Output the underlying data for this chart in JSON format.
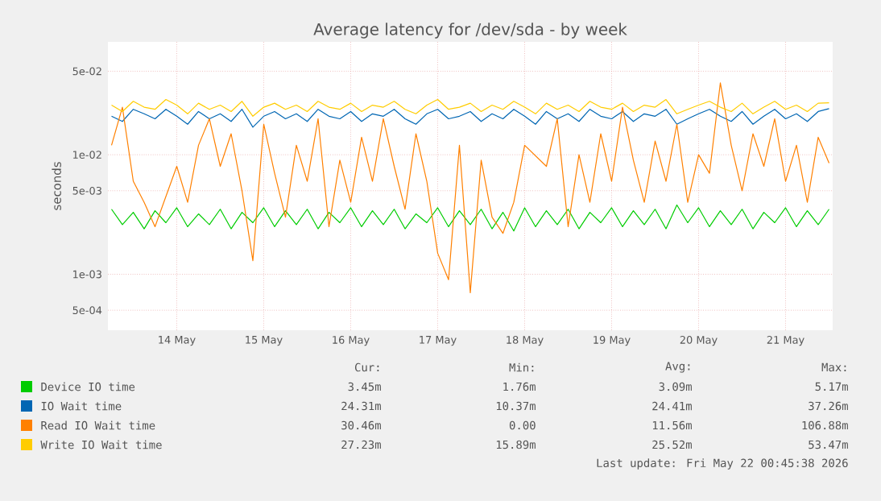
{
  "chart_data": {
    "type": "line",
    "title": "Average latency for /dev/sda - by week",
    "ylabel": "seconds",
    "log": "y",
    "grid": true,
    "legend": "bottom",
    "ylim": [
      0.00034,
      0.088
    ],
    "yticks": [
      {
        "value": 0.0005,
        "label": "5e-04"
      },
      {
        "value": 0.001,
        "label": "1e-03"
      },
      {
        "value": 0.005,
        "label": "5e-03"
      },
      {
        "value": 0.01,
        "label": "1e-02"
      },
      {
        "value": 0.05,
        "label": "5e-02"
      }
    ],
    "xlim": [
      "2026-05-13T17:00",
      "2026-05-22T01:00"
    ],
    "xticks": [
      {
        "value": "2026-05-14T12:00",
        "label": "14 May"
      },
      {
        "value": "2026-05-15T12:00",
        "label": "15 May"
      },
      {
        "value": "2026-05-16T12:00",
        "label": "16 May"
      },
      {
        "value": "2026-05-17T12:00",
        "label": "17 May"
      },
      {
        "value": "2026-05-18T12:00",
        "label": "18 May"
      },
      {
        "value": "2026-05-19T12:00",
        "label": "19 May"
      },
      {
        "value": "2026-05-20T12:00",
        "label": "20 May"
      },
      {
        "value": "2026-05-21T12:00",
        "label": "21 May"
      }
    ],
    "x": [
      "2026-05-13T18:00",
      "2026-05-13T21:00",
      "2026-05-14T00:00",
      "2026-05-14T03:00",
      "2026-05-14T06:00",
      "2026-05-14T09:00",
      "2026-05-14T12:00",
      "2026-05-14T15:00",
      "2026-05-14T18:00",
      "2026-05-14T21:00",
      "2026-05-15T00:00",
      "2026-05-15T03:00",
      "2026-05-15T06:00",
      "2026-05-15T09:00",
      "2026-05-15T12:00",
      "2026-05-15T15:00",
      "2026-05-15T18:00",
      "2026-05-15T21:00",
      "2026-05-16T00:00",
      "2026-05-16T03:00",
      "2026-05-16T06:00",
      "2026-05-16T09:00",
      "2026-05-16T12:00",
      "2026-05-16T15:00",
      "2026-05-16T18:00",
      "2026-05-16T21:00",
      "2026-05-17T00:00",
      "2026-05-17T03:00",
      "2026-05-17T06:00",
      "2026-05-17T09:00",
      "2026-05-17T12:00",
      "2026-05-17T15:00",
      "2026-05-17T18:00",
      "2026-05-17T21:00",
      "2026-05-18T00:00",
      "2026-05-18T03:00",
      "2026-05-18T06:00",
      "2026-05-18T09:00",
      "2026-05-18T12:00",
      "2026-05-18T15:00",
      "2026-05-18T18:00",
      "2026-05-18T21:00",
      "2026-05-19T00:00",
      "2026-05-19T03:00",
      "2026-05-19T06:00",
      "2026-05-19T09:00",
      "2026-05-19T12:00",
      "2026-05-19T15:00",
      "2026-05-19T18:00",
      "2026-05-19T21:00",
      "2026-05-20T00:00",
      "2026-05-20T03:00",
      "2026-05-20T06:00",
      "2026-05-20T09:00",
      "2026-05-20T12:00",
      "2026-05-20T15:00",
      "2026-05-20T18:00",
      "2026-05-20T21:00",
      "2026-05-21T00:00",
      "2026-05-21T03:00",
      "2026-05-21T06:00",
      "2026-05-21T09:00",
      "2026-05-21T12:00",
      "2026-05-21T15:00",
      "2026-05-21T18:00",
      "2026-05-21T21:00",
      "2026-05-22T00:00"
    ],
    "series": [
      {
        "name": "Device IO time",
        "color": "#00cc00",
        "values": [
          0.0035,
          0.0026,
          0.0033,
          0.0024,
          0.0034,
          0.0027,
          0.0036,
          0.0025,
          0.0032,
          0.0026,
          0.0035,
          0.0024,
          0.0033,
          0.0027,
          0.0036,
          0.0025,
          0.0034,
          0.0026,
          0.0035,
          0.0024,
          0.0033,
          0.0027,
          0.0036,
          0.0025,
          0.0034,
          0.0026,
          0.0035,
          0.0024,
          0.0032,
          0.0027,
          0.0036,
          0.0025,
          0.0034,
          0.0026,
          0.0035,
          0.0024,
          0.0033,
          0.0023,
          0.0036,
          0.0025,
          0.0034,
          0.0026,
          0.0035,
          0.0024,
          0.0033,
          0.0027,
          0.0036,
          0.0025,
          0.0034,
          0.0026,
          0.0035,
          0.0024,
          0.0038,
          0.0027,
          0.0036,
          0.0025,
          0.0034,
          0.0026,
          0.0035,
          0.0024,
          0.0033,
          0.0027,
          0.0036,
          0.0025,
          0.0034,
          0.0026,
          0.0035
        ]
      },
      {
        "name": "IO Wait time",
        "color": "#0066b3",
        "values": [
          0.021,
          0.019,
          0.024,
          0.022,
          0.02,
          0.024,
          0.021,
          0.018,
          0.023,
          0.02,
          0.022,
          0.019,
          0.024,
          0.017,
          0.021,
          0.023,
          0.02,
          0.022,
          0.019,
          0.024,
          0.021,
          0.02,
          0.023,
          0.019,
          0.022,
          0.021,
          0.024,
          0.02,
          0.018,
          0.022,
          0.024,
          0.02,
          0.021,
          0.023,
          0.019,
          0.022,
          0.02,
          0.024,
          0.021,
          0.018,
          0.023,
          0.02,
          0.022,
          0.019,
          0.024,
          0.021,
          0.02,
          0.023,
          0.019,
          0.022,
          0.021,
          0.024,
          0.018,
          0.02,
          0.022,
          0.024,
          0.021,
          0.019,
          0.023,
          0.018,
          0.021,
          0.024,
          0.02,
          0.022,
          0.019,
          0.023,
          0.0243
        ]
      },
      {
        "name": "Read IO Wait time",
        "color": "#ff8000",
        "values": [
          0.012,
          0.025,
          0.006,
          0.004,
          0.0025,
          null,
          0.008,
          0.004,
          0.012,
          0.02,
          0.008,
          0.015,
          0.005,
          0.0013,
          0.018,
          0.007,
          0.003,
          0.012,
          0.006,
          0.02,
          0.0025,
          0.009,
          0.004,
          0.014,
          0.006,
          0.02,
          0.008,
          0.0035,
          0.015,
          0.006,
          0.0015,
          0.0009,
          0.012,
          0.0007,
          0.009,
          0.003,
          0.0022,
          0.004,
          0.012,
          null,
          0.008,
          0.02,
          0.0025,
          0.01,
          0.004,
          0.015,
          0.006,
          0.025,
          0.009,
          0.004,
          0.013,
          0.006,
          0.018,
          0.004,
          0.01,
          0.007,
          0.04,
          0.012,
          0.005,
          0.015,
          0.008,
          0.02,
          0.006,
          0.012,
          0.004,
          0.014,
          0.0085
        ]
      },
      {
        "name": "Write IO Wait time",
        "color": "#ffcc00",
        "values": [
          0.026,
          0.023,
          0.028,
          0.025,
          0.024,
          0.029,
          0.026,
          0.022,
          0.027,
          0.024,
          0.026,
          0.023,
          0.028,
          0.021,
          0.025,
          0.027,
          0.024,
          0.026,
          0.023,
          0.028,
          0.025,
          0.024,
          0.027,
          0.023,
          0.026,
          0.025,
          0.028,
          0.024,
          0.022,
          0.026,
          0.029,
          0.024,
          0.025,
          0.027,
          0.023,
          0.026,
          0.024,
          0.028,
          0.025,
          0.022,
          0.027,
          0.024,
          0.026,
          0.023,
          0.028,
          0.025,
          0.024,
          0.027,
          0.023,
          0.026,
          0.025,
          0.029,
          0.022,
          0.024,
          0.026,
          0.028,
          0.025,
          0.023,
          0.027,
          0.022,
          0.025,
          0.028,
          0.024,
          0.026,
          0.023,
          0.027,
          0.0272
        ]
      }
    ],
    "annotations": [
      "Cur:",
      "Min:",
      "Avg:",
      "Max:",
      "3.45m",
      "1.76m",
      "3.09m",
      "5.17m",
      "24.31m",
      "10.37m",
      "24.41m",
      "37.26m",
      "30.46m",
      "0.00",
      "11.56m",
      "106.88m",
      "27.23m",
      "15.89m",
      "25.52m",
      "53.47m",
      "Last update: Fri May 22 00:45:38 2026"
    ]
  }
}
